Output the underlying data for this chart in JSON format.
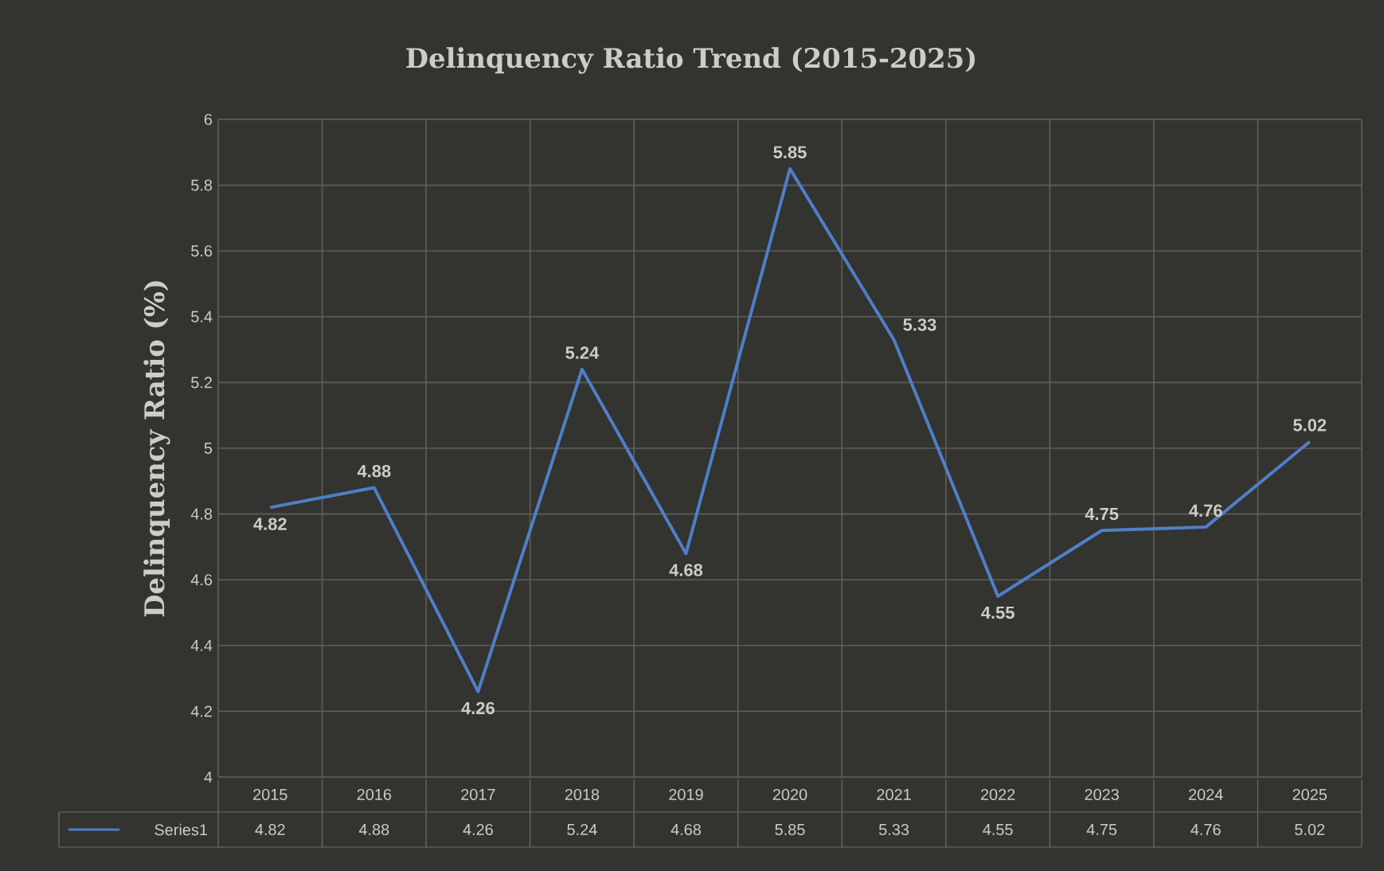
{
  "chart_data": {
    "type": "line",
    "title": "Delinquency Ratio Trend (2015-2025)",
    "ylabel": "Delinquency Ratio (%)",
    "categories": [
      "2015",
      "2016",
      "2017",
      "2018",
      "2019",
      "2020",
      "2021",
      "2022",
      "2023",
      "2024",
      "2025"
    ],
    "series": [
      {
        "name": "Series1",
        "color": "#4f7fc8",
        "values": [
          4.82,
          4.88,
          4.26,
          5.24,
          4.68,
          5.85,
          5.33,
          4.55,
          4.75,
          4.76,
          5.02
        ],
        "value_labels": [
          "4.82",
          "4.88",
          "4.26",
          "5.24",
          "4.68",
          "5.85",
          "5.33",
          "4.55",
          "4.75",
          "4.76",
          "5.02"
        ]
      }
    ],
    "ylim": [
      4,
      6
    ],
    "yticks": [
      4,
      4.2,
      4.4,
      4.6,
      4.8,
      5,
      5.2,
      5.4,
      5.6,
      5.8,
      6
    ],
    "grid": true,
    "data_labels": true,
    "legend": "bottom",
    "marker": "none",
    "line_style": "solid"
  }
}
